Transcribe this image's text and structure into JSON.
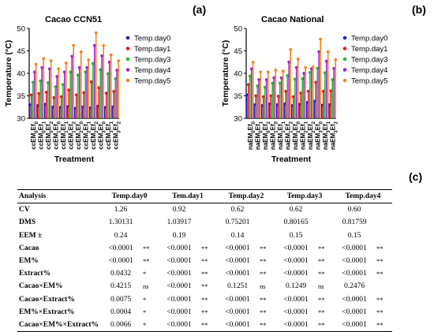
{
  "chart_data": [
    {
      "type": "bar",
      "title": "Cacao CCN51",
      "panel_label": "(a)",
      "xlabel": "Treatment",
      "ylabel": "Temperature (°C)",
      "ylim": [
        30,
        50
      ],
      "yticks": [
        30,
        35,
        40,
        45,
        50
      ],
      "grid": false,
      "legend_position": "right",
      "categories": [
        {
          "base": "ccEM",
          "sub1": "0",
          "mid": "Ef",
          "sub2": "0"
        },
        {
          "base": "ccEM",
          "sub1": "0",
          "mid": "Ef",
          "sub2": "1"
        },
        {
          "base": "ccEM",
          "sub1": "0",
          "mid": "Ef",
          "sub2": "2"
        },
        {
          "base": "ccEM",
          "sub1": "1",
          "mid": "Ef",
          "sub2": "0"
        },
        {
          "base": "ccEM",
          "sub1": "1",
          "mid": "Ef",
          "sub2": "1"
        },
        {
          "base": "ccEM",
          "sub1": "1",
          "mid": "Ef",
          "sub2": "2"
        },
        {
          "base": "ccEM",
          "sub1": "2",
          "mid": "Ef",
          "sub2": "0"
        },
        {
          "base": "ccEM",
          "sub1": "2",
          "mid": "Ef",
          "sub2": "1"
        },
        {
          "base": "ccEM",
          "sub1": "2",
          "mid": "Ef",
          "sub2": "2"
        },
        {
          "base": "ccEM",
          "sub1": "3",
          "mid": "Ef",
          "sub2": "0"
        },
        {
          "base": "ccEM",
          "sub1": "3",
          "mid": "Ef",
          "sub2": "1"
        },
        {
          "base": "ccEM",
          "sub1": "3",
          "mid": "Ef",
          "sub2": "2"
        }
      ],
      "series": [
        {
          "name": "Temp.day0",
          "color": "#1f1fe0",
          "values": [
            33.0,
            32.8,
            33.1,
            32.5,
            32.4,
            32.6,
            32.2,
            32.5,
            32.3,
            32.7,
            32.4,
            32.5
          ]
        },
        {
          "name": "Temp.day1",
          "color": "#e8171f",
          "values": [
            35.2,
            35.5,
            35.8,
            34.6,
            34.8,
            36.3,
            35.2,
            35.7,
            38.1,
            36.8,
            35.6,
            36.0
          ]
        },
        {
          "name": "Temp.day3",
          "color": "#1fbf2f",
          "values": [
            38.0,
            38.3,
            37.9,
            37.0,
            37.5,
            40.3,
            39.6,
            40.3,
            42.2,
            40.8,
            39.9,
            38.8
          ]
        },
        {
          "name": "Temp.day4",
          "color": "#a31fd4",
          "values": [
            40.3,
            41.3,
            41.0,
            39.3,
            40.3,
            43.8,
            41.3,
            41.3,
            46.2,
            43.9,
            42.5,
            40.7
          ]
        },
        {
          "name": "Temp.day5",
          "color": "#f5851f",
          "values": [
            42.0,
            43.3,
            42.8,
            41.0,
            42.3,
            46.2,
            44.8,
            43.0,
            49.0,
            46.2,
            44.1,
            42.8
          ]
        }
      ]
    },
    {
      "type": "bar",
      "title": "Cacao National",
      "panel_label": "(b)",
      "xlabel": "Treatment",
      "ylabel": "Temperature (°C)",
      "ylim": [
        30,
        50
      ],
      "yticks": [
        30,
        35,
        40,
        45,
        50
      ],
      "grid": false,
      "legend_position": "right",
      "categories": [
        {
          "base": "naEM",
          "sub1": "0",
          "mid": "Ef",
          "sub2": "0"
        },
        {
          "base": "naEM",
          "sub1": "0",
          "mid": "Ef",
          "sub2": "1"
        },
        {
          "base": "naEM",
          "sub1": "0",
          "mid": "Ef",
          "sub2": "2"
        },
        {
          "base": "naEM",
          "sub1": "1",
          "mid": "Ef",
          "sub2": "0"
        },
        {
          "base": "naEM",
          "sub1": "1",
          "mid": "Ef",
          "sub2": "1"
        },
        {
          "base": "naEM",
          "sub1": "1",
          "mid": "Ef",
          "sub2": "2"
        },
        {
          "base": "naEM",
          "sub1": "2",
          "mid": "Ef",
          "sub2": "0"
        },
        {
          "base": "naEM",
          "sub1": "2",
          "mid": "Ef",
          "sub2": "1"
        },
        {
          "base": "naEM",
          "sub1": "2",
          "mid": "Ef",
          "sub2": "2"
        },
        {
          "base": "naEM",
          "sub1": "3",
          "mid": "Ef",
          "sub2": "0"
        },
        {
          "base": "naEM",
          "sub1": "3",
          "mid": "Ef",
          "sub2": "1"
        },
        {
          "base": "naEM",
          "sub1": "3",
          "mid": "Ef",
          "sub2": "2"
        }
      ],
      "series": [
        {
          "name": "Temp.day0",
          "color": "#1f1fe0",
          "values": [
            35.2,
            33.0,
            32.8,
            33.2,
            33.0,
            33.2,
            32.8,
            33.1,
            33.5,
            33.8,
            32.9,
            33.0
          ]
        },
        {
          "name": "Temp.day1",
          "color": "#e8171f",
          "values": [
            37.5,
            35.0,
            34.8,
            35.0,
            34.9,
            36.0,
            34.8,
            35.6,
            36.0,
            38.0,
            36.0,
            36.1
          ]
        },
        {
          "name": "Temp.day3",
          "color": "#1fbf2f",
          "values": [
            39.4,
            37.2,
            36.9,
            37.8,
            37.8,
            39.5,
            38.7,
            38.8,
            40.2,
            41.1,
            40.1,
            38.6
          ]
        },
        {
          "name": "Temp.day4",
          "color": "#a31fd4",
          "values": [
            41.0,
            38.6,
            38.6,
            39.0,
            39.0,
            42.5,
            41.3,
            40.0,
            41.0,
            44.8,
            42.7,
            41.1
          ]
        },
        {
          "name": "Temp.day5",
          "color": "#f5851f",
          "values": [
            42.5,
            40.3,
            40.3,
            40.7,
            40.5,
            45.3,
            43.2,
            41.3,
            41.4,
            47.6,
            44.8,
            43.0
          ]
        }
      ]
    },
    {
      "type": "table",
      "panel_label": "(c)",
      "columns": [
        "Analysis",
        "Temp.day0",
        "Tem.day1",
        "Temp.day2",
        "Temp.day3",
        "Temp.day4"
      ],
      "rows": [
        {
          "label": "CV",
          "cells": [
            {
              "v": "1.26",
              "s": ""
            },
            {
              "v": "0.92",
              "s": ""
            },
            {
              "v": "0.62",
              "s": ""
            },
            {
              "v": "0.62",
              "s": ""
            },
            {
              "v": "0.60",
              "s": ""
            }
          ]
        },
        {
          "label": "DMS",
          "cells": [
            {
              "v": "1.30131",
              "s": ""
            },
            {
              "v": "1.03917",
              "s": ""
            },
            {
              "v": "0.75201",
              "s": ""
            },
            {
              "v": "0.80165",
              "s": ""
            },
            {
              "v": "0.81759",
              "s": ""
            }
          ]
        },
        {
          "label": "EEM ±",
          "cells": [
            {
              "v": "0.24",
              "s": ""
            },
            {
              "v": "0.19",
              "s": ""
            },
            {
              "v": "0.14",
              "s": ""
            },
            {
              "v": "0.15",
              "s": ""
            },
            {
              "v": "0.15",
              "s": ""
            }
          ]
        },
        {
          "label": "Cacao",
          "cells": [
            {
              "v": "<0.0001",
              "s": "**"
            },
            {
              "v": "<0.0001",
              "s": "**"
            },
            {
              "v": "<0.0001",
              "s": "**"
            },
            {
              "v": "<0.0001",
              "s": "**"
            },
            {
              "v": "<0.0001",
              "s": "**"
            }
          ]
        },
        {
          "label": "EM%",
          "cells": [
            {
              "v": "<0.0001",
              "s": "**"
            },
            {
              "v": "<0.0001",
              "s": "**"
            },
            {
              "v": "<0.0001",
              "s": "**"
            },
            {
              "v": "<0.0001",
              "s": "**"
            },
            {
              "v": "<0.0001",
              "s": "**"
            }
          ]
        },
        {
          "label": "Extract%",
          "cells": [
            {
              "v": "0.0432",
              "s": "*"
            },
            {
              "v": "<0.0001",
              "s": "**"
            },
            {
              "v": "<0.0001",
              "s": "**"
            },
            {
              "v": "<0.0001",
              "s": "**"
            },
            {
              "v": "<0.0001",
              "s": "**"
            }
          ]
        },
        {
          "label": "Cacao×EM%",
          "cells": [
            {
              "v": "0.4215",
              "s": "ns"
            },
            {
              "v": "<0.0001",
              "s": "**"
            },
            {
              "v": "0.1251",
              "s": "ns"
            },
            {
              "v": "0.1249",
              "s": "ns"
            },
            {
              "v": "0.2476",
              "s": ""
            }
          ]
        },
        {
          "label": "Cacao×Extract%",
          "cells": [
            {
              "v": "0.0075",
              "s": "*"
            },
            {
              "v": "<0.0001",
              "s": "**"
            },
            {
              "v": "<0.0001",
              "s": "**"
            },
            {
              "v": "<0.0001",
              "s": "**"
            },
            {
              "v": "<0.0001",
              "s": "**"
            }
          ]
        },
        {
          "label": "EM%×Extract%",
          "cells": [
            {
              "v": "0.0004",
              "s": "*"
            },
            {
              "v": "<0.0001",
              "s": "**"
            },
            {
              "v": "<0.0001",
              "s": "**"
            },
            {
              "v": "<0.0001",
              "s": "**"
            },
            {
              "v": "<0.0001",
              "s": "**"
            }
          ]
        },
        {
          "label": "Cacao×EM%×Extract%",
          "cells": [
            {
              "v": "0.0066",
              "s": "*"
            },
            {
              "v": "<0.0001",
              "s": "**"
            },
            {
              "v": "<0.0001",
              "s": "**"
            },
            {
              "v": "<0.0001",
              "s": "**"
            },
            {
              "v": "<0.0001",
              "s": "**"
            }
          ]
        }
      ]
    }
  ]
}
